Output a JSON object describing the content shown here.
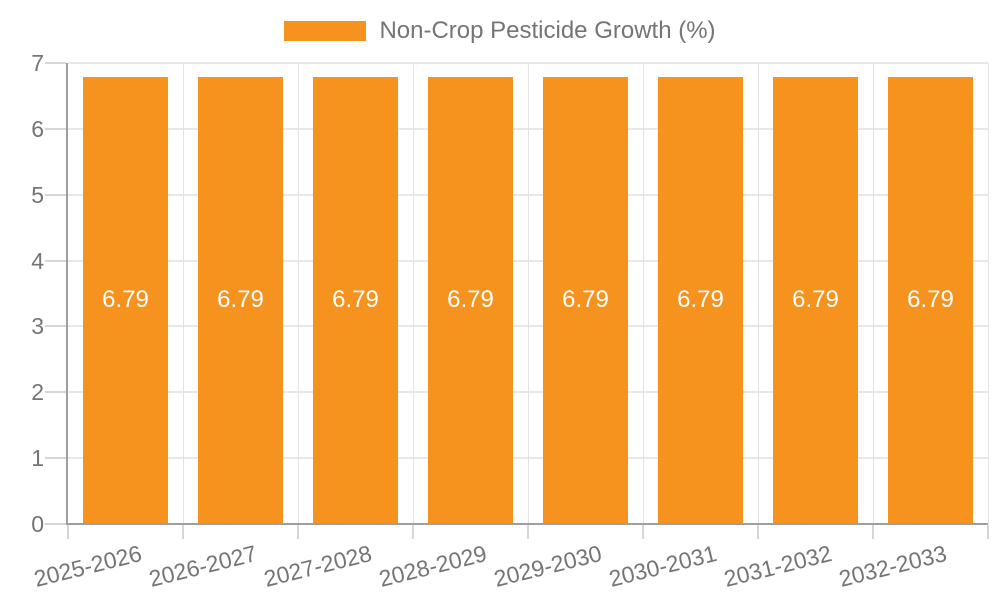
{
  "chart_data": {
    "type": "bar",
    "title": "",
    "legend_position": "top",
    "grid": true,
    "categories": [
      "2025-2026",
      "2026-2027",
      "2027-2028",
      "2028-2029",
      "2029-2030",
      "2030-2031",
      "2031-2032",
      "2032-2033"
    ],
    "series": [
      {
        "name": "Non-Crop Pesticide Growth (%)",
        "values": [
          6.79,
          6.79,
          6.79,
          6.79,
          6.79,
          6.79,
          6.79,
          6.79
        ],
        "value_labels": [
          "6.79",
          "6.79",
          "6.79",
          "6.79",
          "6.79",
          "6.79",
          "6.79",
          "6.79"
        ]
      }
    ],
    "xlabel": "",
    "ylabel": "",
    "ylim": [
      0,
      7
    ],
    "yticks": [
      0,
      1,
      2,
      3,
      4,
      5,
      6,
      7
    ]
  },
  "colors": {
    "bar": "#f6921e",
    "axis_line": "#9e9e9e",
    "gridline_h": "#e8e8e8",
    "gridline_v": "#e3e3e3",
    "tick": "#d6d6d6",
    "axis_label_text": "#757575",
    "legend_text": "#757575",
    "value_label_text": "#ffffff",
    "background": "#ffffff"
  }
}
